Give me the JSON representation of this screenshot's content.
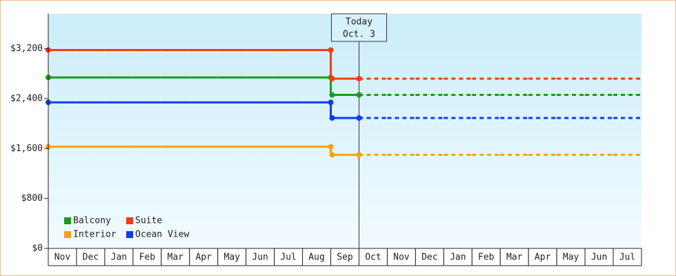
{
  "chart_data": {
    "type": "step-line",
    "categories": [
      "Nov",
      "Dec",
      "Jan",
      "Feb",
      "Mar",
      "Apr",
      "May",
      "Jun",
      "Jul",
      "Aug",
      "Sep",
      "Oct",
      "Nov",
      "Dec",
      "Jan",
      "Feb",
      "Mar",
      "Apr",
      "May",
      "Jun",
      "Jul"
    ],
    "series": [
      {
        "name": "Balcony",
        "color": "#1a9a1a",
        "values": [
          2740,
          2740,
          2740,
          2740,
          2740,
          2740,
          2740,
          2740,
          2740,
          2740,
          2460,
          2460,
          2460,
          2460,
          2460,
          2460,
          2460,
          2460,
          2460,
          2460,
          2460
        ]
      },
      {
        "name": "Suite",
        "color": "#f03c14",
        "values": [
          3180,
          3180,
          3180,
          3180,
          3180,
          3180,
          3180,
          3180,
          3180,
          3180,
          2720,
          2720,
          2720,
          2720,
          2720,
          2720,
          2720,
          2720,
          2720,
          2720,
          2720
        ]
      },
      {
        "name": "Interior",
        "color": "#f5a30f",
        "values": [
          1630,
          1630,
          1630,
          1630,
          1630,
          1630,
          1630,
          1630,
          1630,
          1630,
          1500,
          1500,
          1500,
          1500,
          1500,
          1500,
          1500,
          1500,
          1500,
          1500,
          1500
        ]
      },
      {
        "name": "Ocean View",
        "color": "#0a3cf0",
        "values": [
          2340,
          2340,
          2340,
          2340,
          2340,
          2340,
          2340,
          2340,
          2340,
          2340,
          2090,
          2090,
          2090,
          2090,
          2090,
          2090,
          2090,
          2090,
          2090,
          2090,
          2090
        ]
      }
    ],
    "today": {
      "lines": [
        "Today",
        "Oct. 3"
      ],
      "x": 11
    },
    "ylim": [
      0,
      3760
    ],
    "yticks": [
      {
        "value": 0,
        "label": "$0"
      },
      {
        "value": 800,
        "label": "$800"
      },
      {
        "value": 1600,
        "label": "$1,600"
      },
      {
        "value": 2400,
        "label": "$2,400"
      },
      {
        "value": 3200,
        "label": "$3,200"
      }
    ],
    "legend": "lower left"
  }
}
